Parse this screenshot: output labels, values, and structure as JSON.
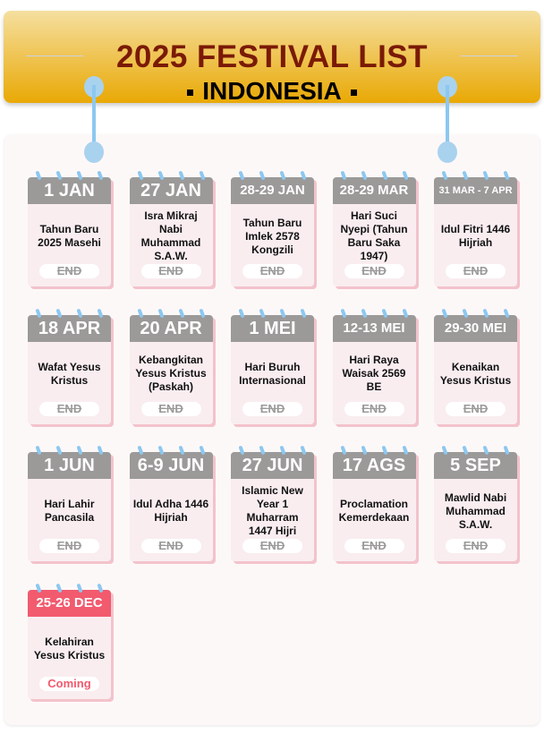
{
  "header": {
    "title": "2025 FESTIVAL LIST",
    "subtitle": "INDONESIA"
  },
  "colors": {
    "ended": "#9b9a99",
    "coming": "#f25a6e",
    "title": "#7a1a06",
    "banner": "#e9a905"
  },
  "festivals": [
    {
      "date": "1 JAN",
      "name": "Tahun Baru 2025 Masehi",
      "status": "END"
    },
    {
      "date": "27 JAN",
      "name": "Isra Mikraj Nabi Muhammad S.A.W.",
      "status": "END"
    },
    {
      "date": "28-29 JAN",
      "name": "Tahun Baru Imlek 2578 Kongzili",
      "status": "END"
    },
    {
      "date": "28-29 MAR",
      "name": "Hari Suci Nyepi (Tahun Baru Saka 1947)",
      "status": "END"
    },
    {
      "date": "31 MAR - 7 APR",
      "name": "Idul Fitri 1446 Hijriah",
      "status": "END"
    },
    {
      "date": "18 APR",
      "name": "Wafat Yesus Kristus",
      "status": "END"
    },
    {
      "date": "20 APR",
      "name": "Kebangkitan Yesus Kristus (Paskah)",
      "status": "END"
    },
    {
      "date": "1 MEI",
      "name": "Hari Buruh Internasional",
      "status": "END"
    },
    {
      "date": "12-13 MEI",
      "name": "Hari Raya Waisak 2569 BE",
      "status": "END"
    },
    {
      "date": "29-30 MEI",
      "name": "Kenaikan Yesus Kristus",
      "status": "END"
    },
    {
      "date": "1 JUN",
      "name": "Hari Lahir Pancasila",
      "status": "END"
    },
    {
      "date": "6-9 JUN",
      "name": "Idul Adha 1446 Hijriah",
      "status": "END"
    },
    {
      "date": "27 JUN",
      "name": "Islamic New Year 1 Muharram 1447 Hijri",
      "status": "END"
    },
    {
      "date": "17 AGS",
      "name": "Proclamation Kemerdekaan",
      "status": "END"
    },
    {
      "date": "5 SEP",
      "name": "Mawlid Nabi Muhammad S.A.W.",
      "status": "END"
    },
    {
      "date": "25-26 DEC",
      "name": "Kelahiran Yesus Kristus",
      "status": "Coming"
    }
  ]
}
